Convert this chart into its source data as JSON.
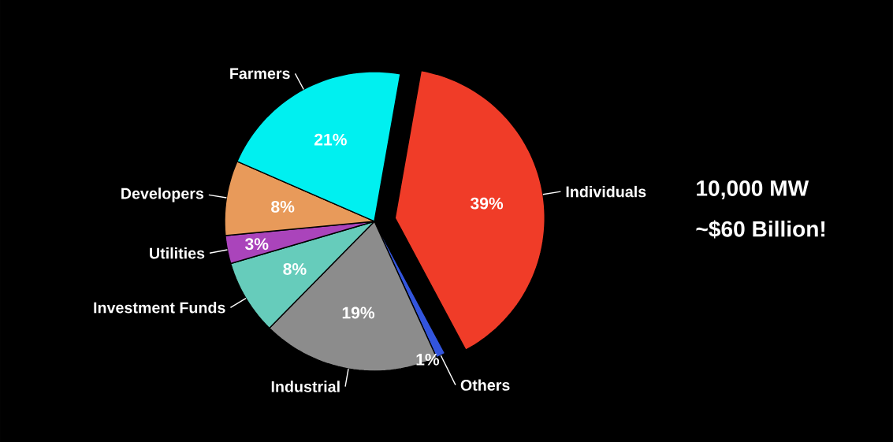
{
  "chart_data": {
    "type": "pie",
    "categories": [
      "Individuals",
      "Others",
      "Industrial",
      "Investment Funds",
      "Utilities",
      "Developers",
      "Farmers"
    ],
    "values": [
      39,
      1,
      19,
      8,
      3,
      8,
      21
    ],
    "value_labels": [
      "39%",
      "1%",
      "19%",
      "8%",
      "3%",
      "8%",
      "21%"
    ],
    "colors": [
      "#f03c28",
      "#3355dd",
      "#8c8c8c",
      "#66ccbb",
      "#aa44bb",
      "#e89a5a",
      "#00f0f0"
    ],
    "annotations": [
      "10,000 MW",
      "~$60 Billion!"
    ]
  }
}
